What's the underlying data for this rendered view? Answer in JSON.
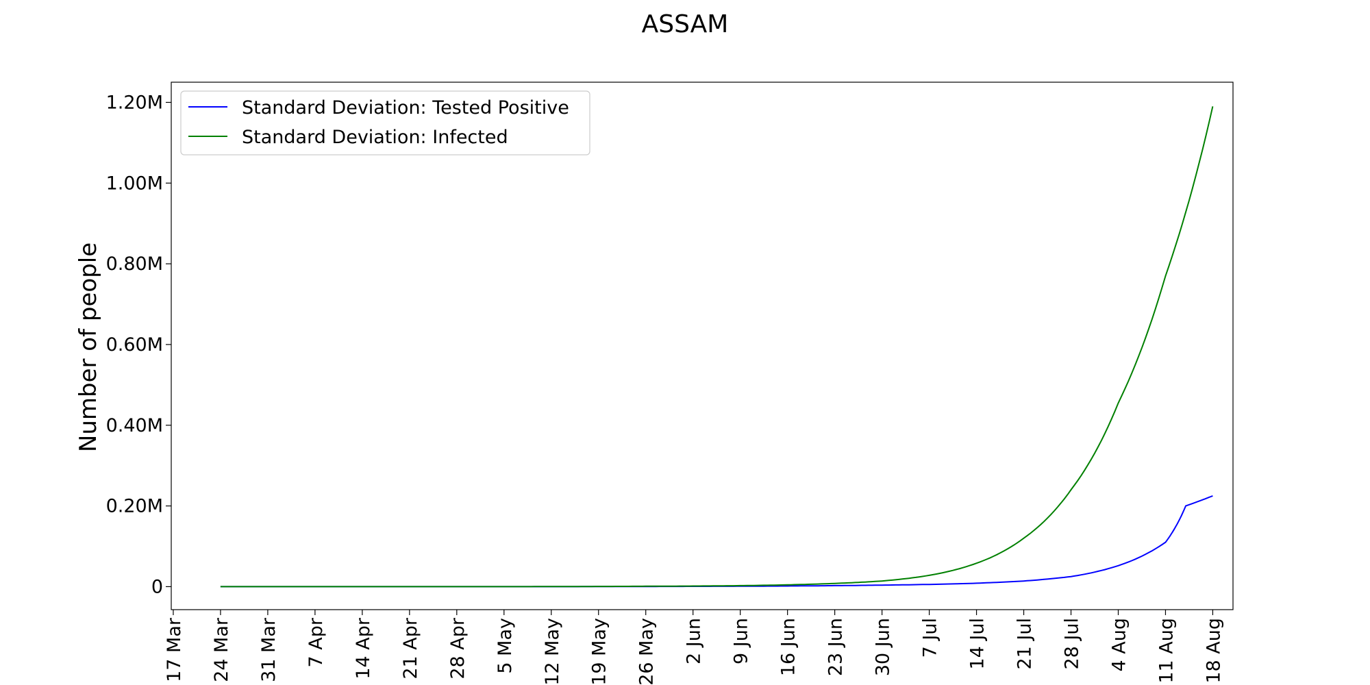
{
  "chart_data": {
    "type": "line",
    "title": "ASSAM",
    "xlabel": "",
    "ylabel": "Number of people",
    "x_tick_labels": [
      "17 Mar",
      "24 Mar",
      "31 Mar",
      "7 Apr",
      "14 Apr",
      "21 Apr",
      "28 Apr",
      "5 May",
      "12 May",
      "19 May",
      "26 May",
      "2 Jun",
      "9 Jun",
      "16 Jun",
      "23 Jun",
      "30 Jun",
      "7 Jul",
      "14 Jul",
      "21 Jul",
      "28 Jul",
      "4 Aug",
      "11 Aug",
      "18 Aug"
    ],
    "y_tick_values": [
      0,
      200000,
      400000,
      600000,
      800000,
      1000000,
      1200000
    ],
    "y_tick_labels": [
      "0",
      "0.20M",
      "0.40M",
      "0.60M",
      "0.80M",
      "1.00M",
      "1.20M"
    ],
    "ylim": [
      -57000,
      1250000
    ],
    "xlim_days_from_17_Mar": [
      -0.3,
      157
    ],
    "grid": false,
    "legend_position": "top-left",
    "series": [
      {
        "name": "Standard Deviation: Tested Positive",
        "color": "#0000ff",
        "x_days_from_17_Mar": [
          7,
          14,
          21,
          28,
          35,
          42,
          49,
          56,
          63,
          70,
          77,
          84,
          91,
          98,
          105,
          112,
          119,
          126,
          133,
          140,
          147,
          154,
          150
        ],
        "values": [
          0,
          0,
          0,
          0,
          0,
          0,
          0,
          0,
          200,
          400,
          700,
          1000,
          1600,
          2500,
          3800,
          5500,
          8500,
          14000,
          25000,
          52000,
          110000,
          225000,
          200000
        ]
      },
      {
        "name": "Standard Deviation: Infected",
        "color": "#008000",
        "x_days_from_17_Mar": [
          7,
          14,
          21,
          28,
          35,
          42,
          49,
          56,
          63,
          70,
          77,
          84,
          91,
          98,
          105,
          112,
          119,
          126,
          133,
          140,
          147,
          154
        ],
        "values": [
          0,
          0,
          0,
          0,
          0,
          0,
          0,
          200,
          500,
          1000,
          1500,
          2500,
          4500,
          8000,
          14000,
          28000,
          58000,
          120000,
          240000,
          455000,
          770000,
          1190000
        ]
      }
    ]
  }
}
